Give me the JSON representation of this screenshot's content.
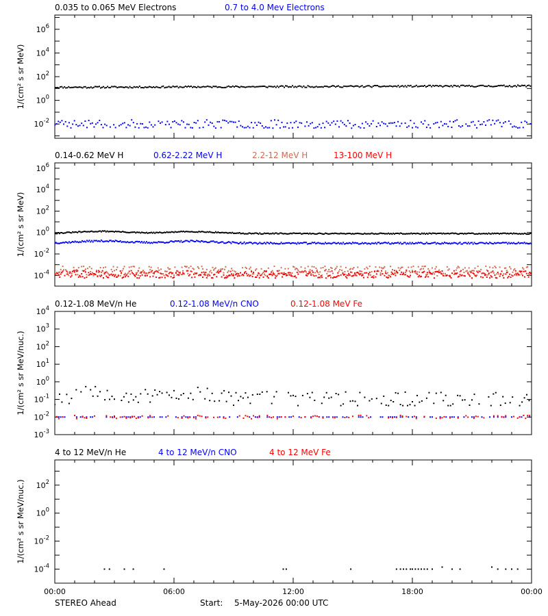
{
  "footer": {
    "left": "STEREO Ahead",
    "start_label": "Start:",
    "start_value": "5-May-2026 00:00 UTC"
  },
  "x_axis": {
    "range_hours": [
      0,
      24
    ],
    "tick_labels": [
      "00:00",
      "06:00",
      "12:00",
      "18:00",
      "00:00"
    ],
    "tick_hours": [
      0,
      6,
      12,
      18,
      24
    ]
  },
  "colors": {
    "black": "#000000",
    "blue": "#0000ff",
    "salmon": "#ce6a52",
    "red": "#ff0000"
  },
  "chart_data": [
    {
      "type": "scatter",
      "title": "",
      "ylabel": "1/(cm² s sr MeV)",
      "yscale": "log",
      "ylim_log10": [
        -3.2,
        7.2
      ],
      "y_ticks": [
        {
          "sup": "6",
          "exp": 6
        },
        {
          "sup": "4",
          "exp": 4
        },
        {
          "sup": "2",
          "exp": 2
        },
        {
          "sup": "0",
          "exp": 0
        },
        {
          "sup": "-2",
          "exp": -2
        }
      ],
      "series": [
        {
          "name": "0.035 to 0.065 MeV Electrons",
          "color": "#000000",
          "pattern": {
            "start_log": 1.1,
            "drift": 0.12,
            "noise": 0.07,
            "step": 0.07,
            "gap": 0,
            "seed": 11
          }
        },
        {
          "name": "0.7 to 4.0 Mev Electrons",
          "color": "#0000ff",
          "pattern": {
            "start_log": -2.0,
            "drift": 0.0,
            "noise": 0.35,
            "step": 0.09,
            "gap": 0.05,
            "seed": 23
          }
        }
      ]
    },
    {
      "type": "scatter",
      "title": "",
      "ylabel": "1/(cm² s sr MeV)",
      "yscale": "log",
      "ylim_log10": [
        -5.0,
        6.5
      ],
      "y_ticks": [
        {
          "sup": "6",
          "exp": 6
        },
        {
          "sup": "4",
          "exp": 4
        },
        {
          "sup": "2",
          "exp": 2
        },
        {
          "sup": "0",
          "exp": 0
        },
        {
          "sup": "-2",
          "exp": -2
        },
        {
          "sup": "-4",
          "exp": -4
        }
      ],
      "series": [
        {
          "name": "0.14-0.62 MeV H",
          "color": "#000000",
          "pattern": {
            "start_log": -0.1,
            "drift": 0.0,
            "noise": 0.05,
            "step": 0.06,
            "gap": 0,
            "seed": 31,
            "bump": 0.35
          }
        },
        {
          "name": "0.62-2.22 MeV H",
          "color": "#0000ff",
          "pattern": {
            "start_log": -1.0,
            "drift": 0.0,
            "noise": 0.08,
            "step": 0.06,
            "gap": 0,
            "seed": 37,
            "bump": 0.35
          }
        },
        {
          "name": "2.2-12 MeV H",
          "color": "#ce6a52",
          "pattern": {
            "start_log": -3.6,
            "drift": 0.0,
            "noise": 0.45,
            "step": 0.05,
            "gap": 0.1,
            "seed": 41
          }
        },
        {
          "name": "13-100 MeV H",
          "color": "#ff0000",
          "pattern": {
            "start_log": -3.9,
            "drift": 0.0,
            "noise": 0.35,
            "step": 0.05,
            "gap": 0.15,
            "seed": 47
          }
        }
      ]
    },
    {
      "type": "scatter",
      "title": "",
      "ylabel": "1/(cm² s sr MeV/nuc.)",
      "yscale": "log",
      "ylim_log10": [
        -3.0,
        4.0
      ],
      "y_ticks": [
        {
          "sup": "4",
          "exp": 4
        },
        {
          "sup": "3",
          "exp": 3
        },
        {
          "sup": "2",
          "exp": 2
        },
        {
          "sup": "1",
          "exp": 1
        },
        {
          "sup": "0",
          "exp": 0
        },
        {
          "sup": "-1",
          "exp": -1
        },
        {
          "sup": "-2",
          "exp": -2
        },
        {
          "sup": "-3",
          "exp": -3
        }
      ],
      "series": [
        {
          "name": "0.12-1.08 MeV/n He",
          "color": "#000000",
          "pattern": {
            "start_log": -1.0,
            "drift": 0.0,
            "noise": 0.45,
            "step": 0.12,
            "gap": 0.2,
            "seed": 53,
            "bump": 0.7,
            "floor": -1.35
          }
        },
        {
          "name": "0.12-1.08 MeV/n CNO",
          "color": "#0000ff",
          "pattern": {
            "start_log": -2.0,
            "drift": 0.0,
            "noise": 0.0,
            "step": 0.1,
            "gap": 0.55,
            "seed": 59
          }
        },
        {
          "name": "0.12-1.08 MeV Fe",
          "color": "#ff0000",
          "pattern": {
            "start_log": -2.0,
            "drift": 0.0,
            "noise": 0.1,
            "step": 0.1,
            "gap": 0.6,
            "seed": 61
          }
        }
      ]
    },
    {
      "type": "scatter",
      "title": "",
      "ylabel": "1/(cm² s sr MeV/nuc.)",
      "yscale": "log",
      "ylim_log10": [
        -5.0,
        3.8
      ],
      "y_ticks": [
        {
          "sup": "2",
          "exp": 2
        },
        {
          "sup": "0",
          "exp": 0
        },
        {
          "sup": "-2",
          "exp": -2
        },
        {
          "sup": "-4",
          "exp": -4
        }
      ],
      "series": [
        {
          "name": "4 to 12 MeV/n He",
          "color": "#000000",
          "points": [
            [
              2.5,
              -4
            ],
            [
              2.75,
              -4
            ],
            [
              3.5,
              -4
            ],
            [
              3.95,
              -4
            ],
            [
              5.5,
              -4
            ],
            [
              11.5,
              -4
            ],
            [
              11.65,
              -4
            ],
            [
              14.9,
              -4
            ],
            [
              17.2,
              -4
            ],
            [
              17.4,
              -4
            ],
            [
              17.55,
              -4
            ],
            [
              17.7,
              -4
            ],
            [
              17.9,
              -4
            ],
            [
              18.0,
              -4
            ],
            [
              18.15,
              -4
            ],
            [
              18.3,
              -4
            ],
            [
              18.45,
              -4
            ],
            [
              18.6,
              -4
            ],
            [
              18.75,
              -4
            ],
            [
              19.0,
              -4
            ],
            [
              19.5,
              -3.85
            ],
            [
              20.0,
              -4
            ],
            [
              20.4,
              -4
            ],
            [
              22.0,
              -3.85
            ],
            [
              22.3,
              -4
            ],
            [
              22.7,
              -4
            ],
            [
              23.0,
              -4
            ],
            [
              23.3,
              -4
            ]
          ]
        },
        {
          "name": "4 to 12 MeV/n CNO",
          "color": "#0000ff",
          "points": []
        },
        {
          "name": "4 to 12 MeV Fe",
          "color": "#ff0000",
          "points": []
        }
      ]
    }
  ]
}
